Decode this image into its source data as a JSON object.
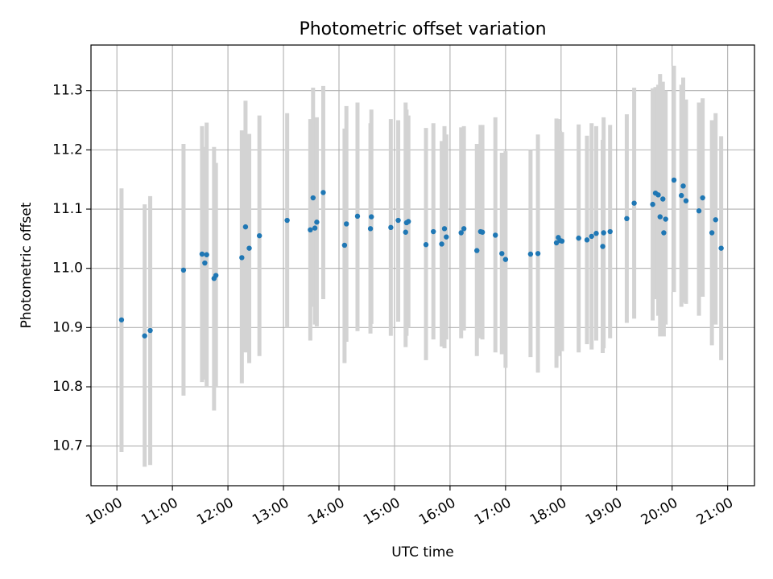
{
  "chart_data": {
    "type": "scatter",
    "title": "Photometric offset variation",
    "xlabel": "UTC time",
    "ylabel": "Photometric offset",
    "x_tick_labels": [
      "10:00",
      "11:00",
      "12:00",
      "13:00",
      "14:00",
      "15:00",
      "16:00",
      "17:00",
      "18:00",
      "19:00",
      "20:00",
      "21:00"
    ],
    "y_tick_labels": [
      "10.7",
      "10.8",
      "10.9",
      "11.0",
      "11.1",
      "11.2",
      "11.3"
    ],
    "y_ticks": [
      10.7,
      10.8,
      10.9,
      11.0,
      11.1,
      11.2,
      11.3
    ],
    "xlim": [
      "09:32",
      "21:29"
    ],
    "ylim": [
      10.633,
      11.377
    ],
    "grid": true,
    "colors": {
      "point": "#1f77b4",
      "errorbar": "#d3d3d3",
      "grid": "#b0b0b0"
    },
    "points": [
      {
        "t": "10:05",
        "y": 10.913,
        "lo": 10.69,
        "hi": 11.135
      },
      {
        "t": "10:30",
        "y": 10.886,
        "lo": 10.665,
        "hi": 11.108
      },
      {
        "t": "10:36",
        "y": 10.895,
        "lo": 10.668,
        "hi": 11.122
      },
      {
        "t": "11:12",
        "y": 10.997,
        "lo": 10.785,
        "hi": 11.21
      },
      {
        "t": "11:32",
        "y": 11.024,
        "lo": 10.808,
        "hi": 11.24
      },
      {
        "t": "11:35",
        "y": 11.009,
        "lo": 10.812,
        "hi": 11.205
      },
      {
        "t": "11:37",
        "y": 11.023,
        "lo": 10.8,
        "hi": 11.246
      },
      {
        "t": "11:45",
        "y": 10.983,
        "lo": 10.76,
        "hi": 11.205
      },
      {
        "t": "11:47",
        "y": 10.988,
        "lo": 10.8,
        "hi": 11.178
      },
      {
        "t": "12:15",
        "y": 11.018,
        "lo": 10.806,
        "hi": 11.233
      },
      {
        "t": "12:19",
        "y": 11.07,
        "lo": 10.858,
        "hi": 11.283
      },
      {
        "t": "12:23",
        "y": 11.034,
        "lo": 10.84,
        "hi": 11.227
      },
      {
        "t": "12:34",
        "y": 11.055,
        "lo": 10.852,
        "hi": 11.258
      },
      {
        "t": "13:04",
        "y": 11.081,
        "lo": 10.9,
        "hi": 11.262
      },
      {
        "t": "13:29",
        "y": 11.065,
        "lo": 10.878,
        "hi": 11.252
      },
      {
        "t": "13:32",
        "y": 11.119,
        "lo": 10.935,
        "hi": 11.305
      },
      {
        "t": "13:34",
        "y": 11.068,
        "lo": 10.905,
        "hi": 11.232
      },
      {
        "t": "13:36",
        "y": 11.078,
        "lo": 10.902,
        "hi": 11.255
      },
      {
        "t": "13:43",
        "y": 11.128,
        "lo": 10.948,
        "hi": 11.308
      },
      {
        "t": "14:06",
        "y": 11.039,
        "lo": 10.84,
        "hi": 11.236
      },
      {
        "t": "14:08",
        "y": 11.075,
        "lo": 10.876,
        "hi": 11.274
      },
      {
        "t": "14:20",
        "y": 11.088,
        "lo": 10.894,
        "hi": 11.28
      },
      {
        "t": "14:34",
        "y": 11.067,
        "lo": 10.89,
        "hi": 11.245
      },
      {
        "t": "14:35",
        "y": 11.087,
        "lo": 10.906,
        "hi": 11.268
      },
      {
        "t": "14:56",
        "y": 11.069,
        "lo": 10.886,
        "hi": 11.252
      },
      {
        "t": "15:04",
        "y": 11.081,
        "lo": 10.91,
        "hi": 11.25
      },
      {
        "t": "15:12",
        "y": 11.061,
        "lo": 10.867,
        "hi": 11.28
      },
      {
        "t": "15:13",
        "y": 11.077,
        "lo": 10.886,
        "hi": 11.268
      },
      {
        "t": "15:15",
        "y": 11.079,
        "lo": 10.9,
        "hi": 11.258
      },
      {
        "t": "15:34",
        "y": 11.04,
        "lo": 10.845,
        "hi": 11.237
      },
      {
        "t": "15:42",
        "y": 11.062,
        "lo": 10.88,
        "hi": 11.245
      },
      {
        "t": "15:51",
        "y": 11.041,
        "lo": 10.868,
        "hi": 11.215
      },
      {
        "t": "15:54",
        "y": 11.067,
        "lo": 10.865,
        "hi": 11.24
      },
      {
        "t": "15:56",
        "y": 11.053,
        "lo": 10.88,
        "hi": 11.226
      },
      {
        "t": "16:12",
        "y": 11.06,
        "lo": 10.882,
        "hi": 11.238
      },
      {
        "t": "16:15",
        "y": 11.067,
        "lo": 10.895,
        "hi": 11.24
      },
      {
        "t": "16:29",
        "y": 11.03,
        "lo": 10.852,
        "hi": 11.21
      },
      {
        "t": "16:33",
        "y": 11.062,
        "lo": 10.882,
        "hi": 11.242
      },
      {
        "t": "16:35",
        "y": 11.061,
        "lo": 10.88,
        "hi": 11.242
      },
      {
        "t": "16:49",
        "y": 11.056,
        "lo": 10.858,
        "hi": 11.255
      },
      {
        "t": "16:56",
        "y": 11.025,
        "lo": 10.855,
        "hi": 11.195
      },
      {
        "t": "17:00",
        "y": 11.015,
        "lo": 10.832,
        "hi": 11.198
      },
      {
        "t": "17:27",
        "y": 11.024,
        "lo": 10.85,
        "hi": 11.2
      },
      {
        "t": "17:35",
        "y": 11.025,
        "lo": 10.824,
        "hi": 11.226
      },
      {
        "t": "17:55",
        "y": 11.043,
        "lo": 10.832,
        "hi": 11.253
      },
      {
        "t": "17:57",
        "y": 11.052,
        "lo": 10.852,
        "hi": 11.252
      },
      {
        "t": "17:59",
        "y": 11.047,
        "lo": 10.862,
        "hi": 11.232
      },
      {
        "t": "18:01",
        "y": 11.046,
        "lo": 10.86,
        "hi": 11.23
      },
      {
        "t": "18:19",
        "y": 11.051,
        "lo": 10.858,
        "hi": 11.243
      },
      {
        "t": "18:28",
        "y": 11.048,
        "lo": 10.872,
        "hi": 11.224
      },
      {
        "t": "18:33",
        "y": 11.054,
        "lo": 10.863,
        "hi": 11.245
      },
      {
        "t": "18:38",
        "y": 11.059,
        "lo": 10.878,
        "hi": 11.24
      },
      {
        "t": "18:45",
        "y": 11.037,
        "lo": 10.857,
        "hi": 11.217
      },
      {
        "t": "18:46",
        "y": 11.06,
        "lo": 10.865,
        "hi": 11.255
      },
      {
        "t": "18:53",
        "y": 11.062,
        "lo": 10.882,
        "hi": 11.242
      },
      {
        "t": "19:11",
        "y": 11.084,
        "lo": 10.908,
        "hi": 11.26
      },
      {
        "t": "19:19",
        "y": 11.11,
        "lo": 10.915,
        "hi": 11.305
      },
      {
        "t": "19:39",
        "y": 11.108,
        "lo": 10.912,
        "hi": 11.304
      },
      {
        "t": "19:42",
        "y": 11.127,
        "lo": 10.948,
        "hi": 11.306
      },
      {
        "t": "19:45",
        "y": 11.124,
        "lo": 10.92,
        "hi": 11.31
      },
      {
        "t": "19:47",
        "y": 11.087,
        "lo": 10.885,
        "hi": 11.328
      },
      {
        "t": "19:50",
        "y": 11.117,
        "lo": 10.92,
        "hi": 11.315
      },
      {
        "t": "19:51",
        "y": 11.06,
        "lo": 10.885,
        "hi": 11.235
      },
      {
        "t": "19:53",
        "y": 11.083,
        "lo": 10.905,
        "hi": 11.3
      },
      {
        "t": "20:02",
        "y": 11.149,
        "lo": 10.96,
        "hi": 11.342
      },
      {
        "t": "20:10",
        "y": 11.123,
        "lo": 10.935,
        "hi": 11.31
      },
      {
        "t": "20:12",
        "y": 11.139,
        "lo": 10.942,
        "hi": 11.322
      },
      {
        "t": "20:15",
        "y": 11.114,
        "lo": 10.94,
        "hi": 11.285
      },
      {
        "t": "20:29",
        "y": 11.097,
        "lo": 10.92,
        "hi": 11.28
      },
      {
        "t": "20:33",
        "y": 11.119,
        "lo": 10.952,
        "hi": 11.287
      },
      {
        "t": "20:43",
        "y": 11.06,
        "lo": 10.87,
        "hi": 11.25
      },
      {
        "t": "20:47",
        "y": 11.082,
        "lo": 10.905,
        "hi": 11.262
      },
      {
        "t": "20:53",
        "y": 11.034,
        "lo": 10.845,
        "hi": 11.223
      }
    ]
  }
}
